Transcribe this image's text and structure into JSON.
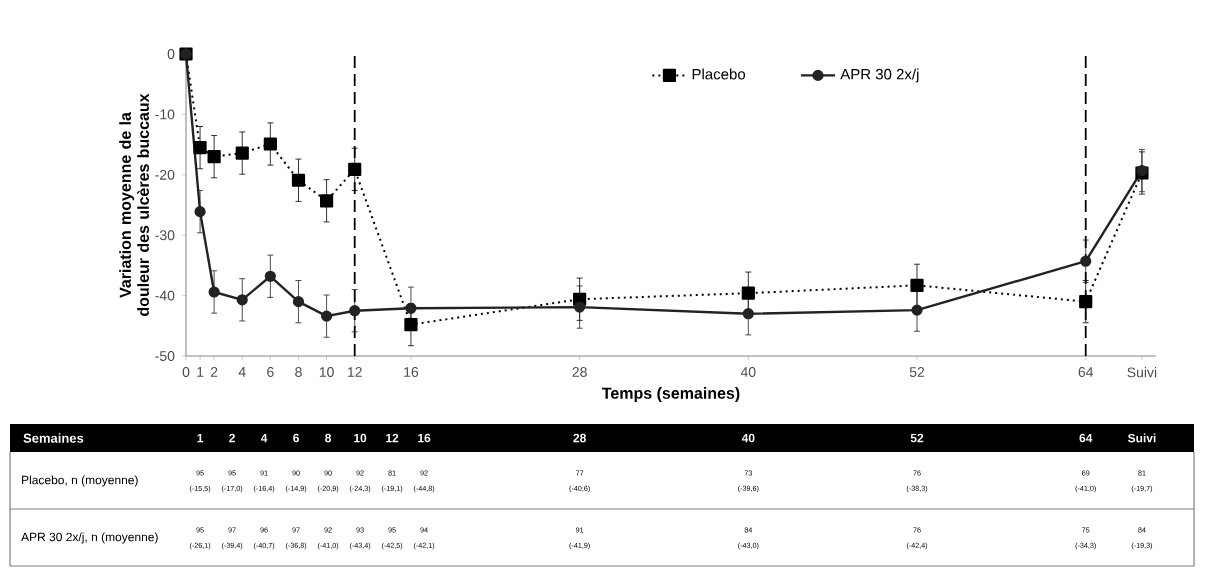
{
  "chart_data": {
    "type": "line",
    "xlabel": "Temps (semaines)",
    "ylabel": "Variation moyenne de la douleur des ulcères buccaux",
    "xlim": [
      0,
      69
    ],
    "ylim": [
      -50,
      0
    ],
    "xticks": [
      0,
      1,
      2,
      4,
      6,
      8,
      10,
      12,
      16,
      28,
      40,
      52,
      64,
      {
        "value": 68,
        "label": "Suivi"
      }
    ],
    "yticks": [
      -50,
      -40,
      -30,
      -20,
      -10,
      0
    ],
    "legend": "top",
    "grid": false,
    "ref_lines": [
      {
        "axis": "x",
        "value": 12,
        "color": "#000000",
        "line_style": "dashed"
      },
      {
        "axis": "x",
        "value": 64,
        "color": "#000000",
        "line_style": "dashed"
      }
    ],
    "series": [
      {
        "name": "Placebo",
        "color": "#000000",
        "marker": "square",
        "line_style": "dotted",
        "x": [
          0,
          1,
          2,
          4,
          6,
          8,
          10,
          12,
          16,
          28,
          40,
          52,
          64,
          68
        ],
        "values": [
          0,
          -15.5,
          -17.0,
          -16.4,
          -14.9,
          -20.9,
          -24.3,
          -19.1,
          -44.8,
          -40.6,
          -39.6,
          -38.3,
          -41.0,
          -19.7
        ],
        "errors": [
          null,
          3.5,
          3.5,
          3.5,
          3.5,
          3.5,
          3.5,
          3.5,
          3.5,
          3.5,
          3.5,
          3.5,
          3.5,
          3.5
        ]
      },
      {
        "name": "APR 30 2x/j",
        "color": "#222222",
        "marker": "circle",
        "line_style": "solid",
        "x": [
          0,
          1,
          2,
          4,
          6,
          8,
          10,
          12,
          16,
          28,
          40,
          52,
          64,
          68
        ],
        "values": [
          0,
          -26.1,
          -39.4,
          -40.7,
          -36.8,
          -41.0,
          -43.4,
          -42.5,
          -42.1,
          -41.9,
          -43.0,
          -42.4,
          -34.3,
          -19.3
        ],
        "errors": [
          null,
          3.5,
          3.5,
          3.5,
          3.5,
          3.5,
          3.5,
          3.5,
          3.5,
          3.5,
          3.5,
          3.5,
          3.5,
          3.5
        ]
      }
    ],
    "annotations": [
      "Semaines",
      "1",
      "2",
      "4",
      "6",
      "8",
      "10",
      "12",
      "16",
      "28",
      "40",
      "52",
      "64",
      "Suivi",
      "Placebo, n (moyenne)",
      "95",
      "95",
      "91",
      "90",
      "90",
      "92",
      "81",
      "92",
      "77",
      "73",
      "76",
      "69",
      "81",
      "(-15,5)",
      "(-17,0)",
      "(-16,4)",
      "(-14,9)",
      "(-20,9)",
      "(-24,3)",
      "(-19,1)",
      "(-44,8)",
      "(-40,6)",
      "(-39,6)",
      "(-38,3)",
      "(-41,0)",
      "(-19,7)",
      "APR 30 2x/j, n (moyenne)",
      "95",
      "97",
      "96",
      "97",
      "92",
      "93",
      "95",
      "94",
      "91",
      "84",
      "76",
      "75",
      "84",
      "(-26,1)",
      "(-39,4)",
      "(-40,7)",
      "(-36,8)",
      "(-41,0)",
      "(-43,4)",
      "(-42,5)",
      "(-42,1)",
      "(-41,9)",
      "(-43,0)",
      "(-42,4)",
      "(-34,3)",
      "(-19,3)"
    ]
  }
}
